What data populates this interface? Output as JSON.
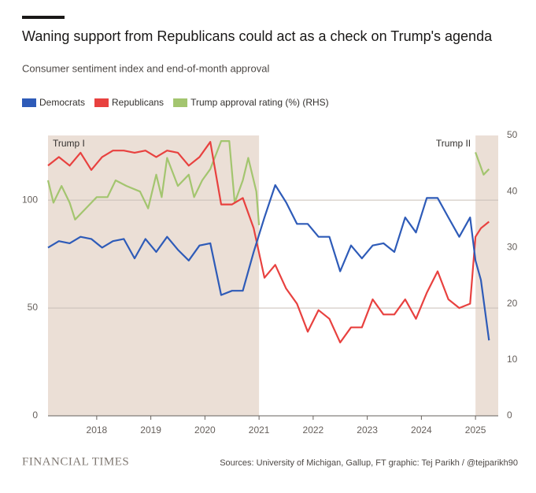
{
  "chart_data": {
    "type": "line",
    "title": "Waning support from Republicans could act as a check on Trump's agenda",
    "subtitle": "Consumer sentiment index and end-of-month approval",
    "source": "Sources: University of Michigan, Gallup, FT graphic: Tej Parikh / @tejparikh90",
    "brand": "FINANCIAL TIMES",
    "x": [
      2017.1,
      2017.3,
      2017.5,
      2017.7,
      2017.9,
      2018.1,
      2018.3,
      2018.5,
      2018.7,
      2018.9,
      2019.1,
      2019.3,
      2019.5,
      2019.7,
      2019.9,
      2020.1,
      2020.3,
      2020.5,
      2020.7,
      2020.9,
      2021.1,
      2021.3,
      2021.5,
      2021.7,
      2021.9,
      2022.1,
      2022.3,
      2022.5,
      2022.7,
      2022.9,
      2023.1,
      2023.3,
      2023.5,
      2023.7,
      2023.9,
      2024.1,
      2024.3,
      2024.5,
      2024.7,
      2024.9,
      2025.0,
      2025.1,
      2025.25
    ],
    "series": [
      {
        "name": "Democrats",
        "color": "#2e5bb8",
        "values": [
          78,
          81,
          80,
          83,
          82,
          78,
          81,
          82,
          73,
          82,
          76,
          83,
          77,
          72,
          79,
          80,
          56,
          58,
          58,
          76,
          92,
          107,
          99,
          89,
          89,
          83,
          83,
          67,
          79,
          73,
          79,
          80,
          76,
          92,
          85,
          101,
          101,
          92,
          83,
          92,
          72,
          63,
          35
        ]
      },
      {
        "name": "Republicans",
        "color": "#e8413f",
        "values": [
          116,
          120,
          116,
          122,
          114,
          120,
          123,
          123,
          122,
          123,
          120,
          123,
          122,
          116,
          120,
          127,
          98,
          98,
          101,
          87,
          64,
          70,
          59,
          52,
          39,
          49,
          45,
          34,
          41,
          41,
          54,
          47,
          47,
          54,
          45,
          57,
          67,
          54,
          50,
          52,
          83,
          87,
          90
        ]
      },
      {
        "name": "Trump approval rating (%) (RHS)",
        "color": "#a3c56f",
        "axis": "y2",
        "x": [
          2017.1,
          2017.2,
          2017.35,
          2017.5,
          2017.6,
          2017.8,
          2018.0,
          2018.2,
          2018.35,
          2018.55,
          2018.8,
          2018.95,
          2019.1,
          2019.2,
          2019.3,
          2019.5,
          2019.7,
          2019.8,
          2019.95,
          2020.1,
          2020.3,
          2020.45,
          2020.55,
          2020.7,
          2020.8,
          2020.95,
          2021.0,
          2023.0,
          2025.0,
          2025.15,
          2025.25
        ],
        "values": [
          42,
          38,
          41,
          38,
          35,
          37,
          39,
          39,
          42,
          41,
          40,
          37,
          43,
          39,
          46,
          41,
          43,
          39,
          42,
          44,
          49,
          49,
          38,
          42,
          46,
          40,
          34,
          null,
          47,
          43,
          44
        ]
      }
    ],
    "shaded": [
      {
        "label": "Trump I",
        "start": 2017.1,
        "end": 2021.0
      },
      {
        "label": "Trump II",
        "start": 2025.0,
        "end": 2025.42
      }
    ],
    "xlim": [
      2017.1,
      2025.42
    ],
    "xticks": [
      2018,
      2019,
      2020,
      2021,
      2022,
      2023,
      2024,
      2025
    ],
    "ylim": [
      0,
      130
    ],
    "yticks": [
      0,
      50,
      100
    ],
    "y2lim": [
      0,
      50
    ],
    "y2ticks": [
      0,
      10,
      20,
      30,
      40,
      50
    ],
    "grid": true
  }
}
